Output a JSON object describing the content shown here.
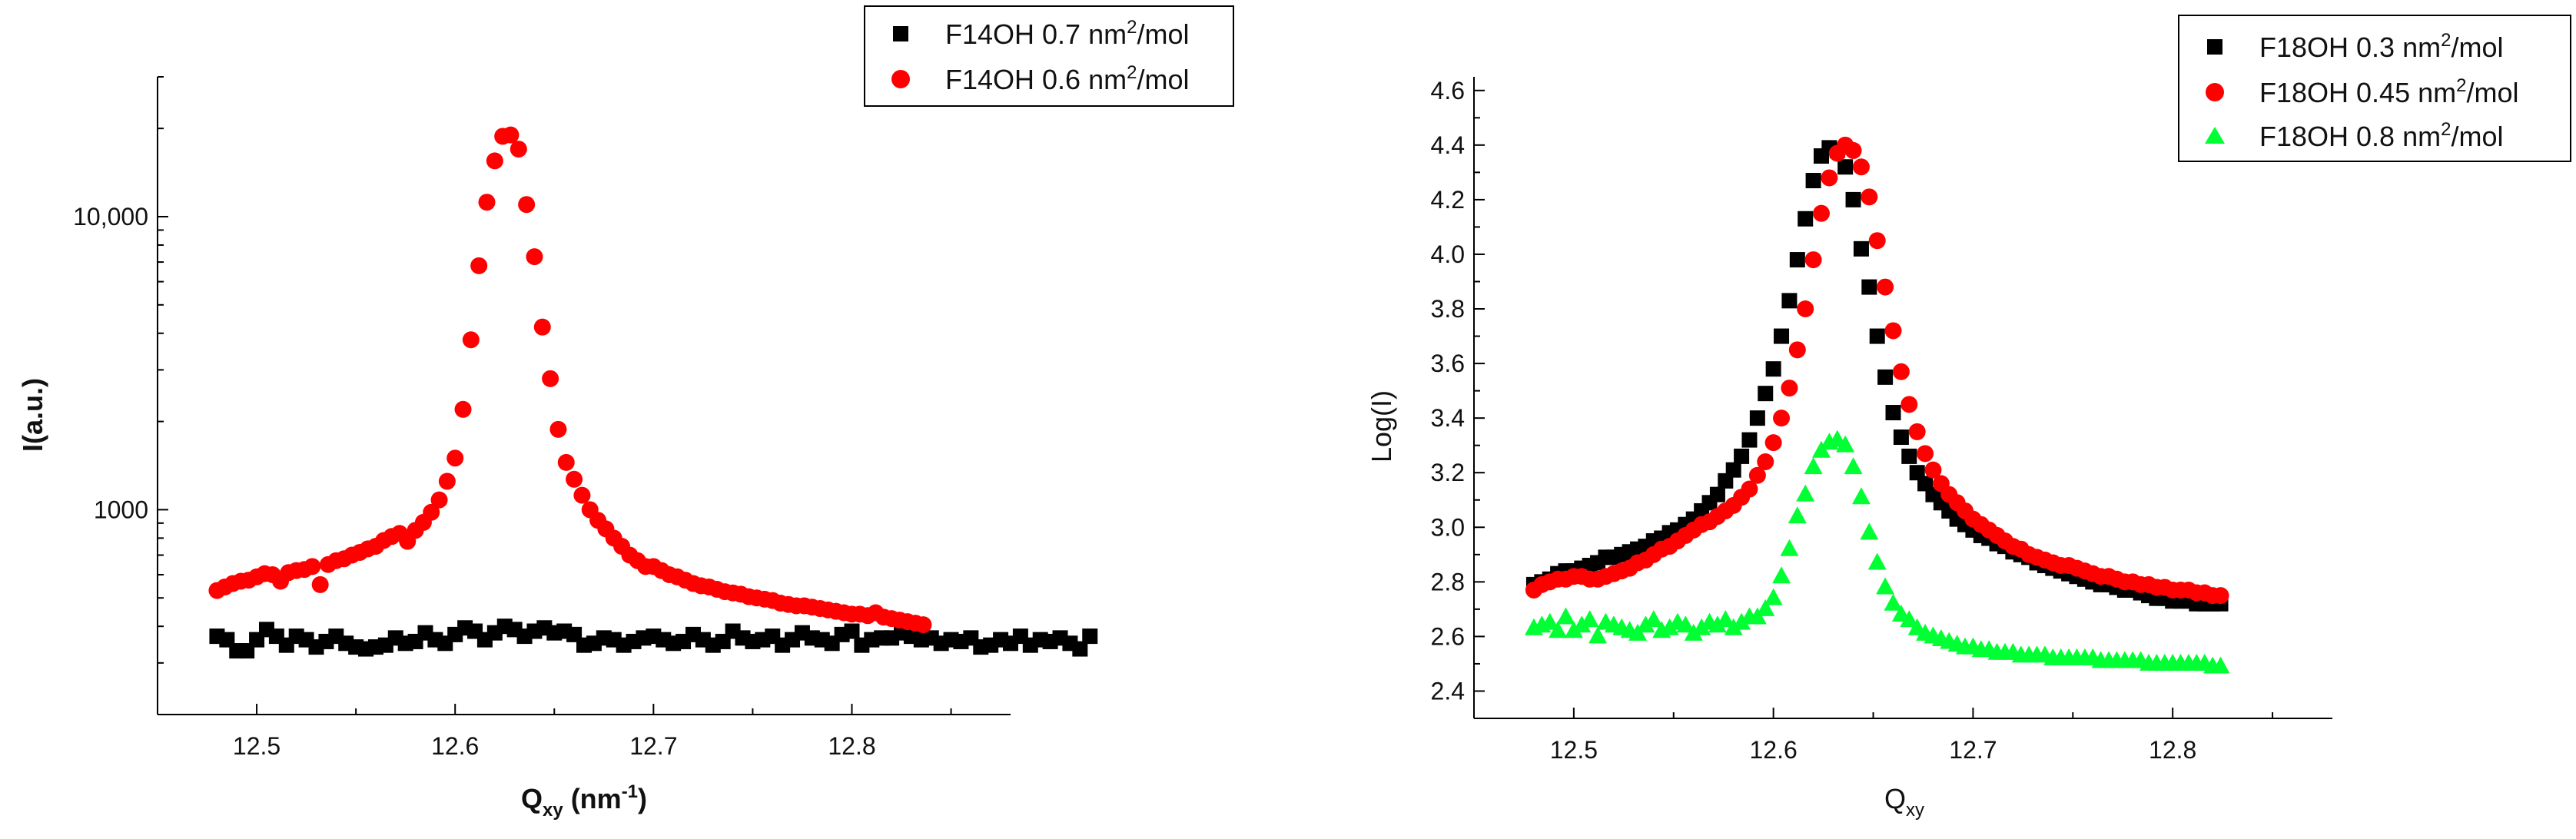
{
  "chart_data": [
    {
      "id": "left",
      "type": "scatter",
      "yscale": "log",
      "xlabel": {
        "main": "Q",
        "sub": "xy",
        "unit": " (nm",
        "unit_sup": "-1",
        "unit_close": ")"
      },
      "ylabel": "I(a.u.)",
      "xlim": [
        12.45,
        12.88
      ],
      "ylim": [
        200,
        30000
      ],
      "xticks": [
        12.5,
        12.6,
        12.7,
        12.8
      ],
      "xtick_labels": [
        "12.5",
        "12.6",
        "12.7",
        "12.8"
      ],
      "yticks": [
        1000,
        10000
      ],
      "ytick_labels": [
        "1000",
        "10,000"
      ],
      "legend_position": "top-right",
      "series": [
        {
          "name": "F14OH 0.7 nm",
          "name_sup": "2",
          "name_tail": "/mol",
          "color": "#000000",
          "marker": "square",
          "x_start": 12.48,
          "x_step": 0.005,
          "values": [
            370,
            360,
            330,
            330,
            360,
            390,
            370,
            345,
            370,
            360,
            340,
            355,
            370,
            350,
            340,
            335,
            340,
            345,
            365,
            350,
            355,
            380,
            360,
            350,
            375,
            395,
            385,
            360,
            380,
            400,
            390,
            370,
            385,
            395,
            380,
            385,
            375,
            345,
            350,
            365,
            360,
            345,
            355,
            365,
            370,
            360,
            350,
            355,
            375,
            360,
            345,
            355,
            385,
            365,
            355,
            360,
            370,
            345,
            360,
            380,
            365,
            360,
            350,
            375,
            385,
            345,
            360,
            365,
            365,
            380,
            370,
            360,
            365,
            350,
            360,
            355,
            365,
            340,
            345,
            360,
            350,
            370,
            345,
            360,
            355,
            365,
            350,
            335,
            370
          ]
        },
        {
          "name": "F14OH 0.6 nm",
          "name_sup": "2",
          "name_tail": "/mol",
          "color": "#ff0000",
          "marker": "circle",
          "x_start": 12.48,
          "x_step": 0.004,
          "values": [
            530,
            545,
            560,
            570,
            575,
            590,
            605,
            600,
            570,
            610,
            620,
            625,
            640,
            555,
            650,
            670,
            680,
            700,
            715,
            735,
            750,
            785,
            810,
            830,
            780,
            850,
            905,
            980,
            1080,
            1250,
            1500,
            2200,
            3800,
            6800,
            11200,
            15500,
            18800,
            19000,
            17000,
            11000,
            7300,
            4200,
            2800,
            1880,
            1450,
            1270,
            1120,
            1000,
            920,
            860,
            800,
            750,
            700,
            670,
            640,
            640,
            620,
            600,
            590,
            575,
            560,
            550,
            545,
            535,
            525,
            520,
            515,
            505,
            500,
            495,
            490,
            480,
            475,
            470,
            470,
            465,
            460,
            455,
            450,
            445,
            440,
            440,
            435,
            445,
            430,
            425,
            420,
            415,
            410,
            405
          ]
        }
      ]
    },
    {
      "id": "right",
      "type": "scatter",
      "yscale": "linear",
      "xlabel": {
        "main": "Q",
        "sub": "xy",
        "unit": "",
        "unit_sup": "",
        "unit_close": ""
      },
      "ylabel": "Log(I)",
      "xlim": [
        12.45,
        12.88
      ],
      "ylim": [
        2.3,
        4.65
      ],
      "xticks": [
        12.5,
        12.6,
        12.7,
        12.8
      ],
      "xtick_labels": [
        "12.5",
        "12.6",
        "12.7",
        "12.8"
      ],
      "yticks": [
        2.4,
        2.6,
        2.8,
        3.0,
        3.2,
        3.4,
        3.6,
        3.8,
        4.0,
        4.2,
        4.4,
        4.6
      ],
      "ytick_labels": [
        "2.4",
        "2.6",
        "2.8",
        "3.0",
        "3.2",
        "3.4",
        "3.6",
        "3.8",
        "4.0",
        "4.2",
        "4.4",
        "4.6"
      ],
      "legend_position": "top-right",
      "series": [
        {
          "name": "F18OH 0.3 nm",
          "name_sup": "2",
          "name_tail": "/mol",
          "color": "#000000",
          "marker": "square",
          "x_start": 12.48,
          "x_step": 0.004,
          "values": [
            2.79,
            2.8,
            2.81,
            2.83,
            2.84,
            2.84,
            2.85,
            2.86,
            2.87,
            2.89,
            2.89,
            2.9,
            2.91,
            2.92,
            2.93,
            2.95,
            2.96,
            2.98,
            2.99,
            3.01,
            3.03,
            3.06,
            3.09,
            3.12,
            3.17,
            3.21,
            3.26,
            3.32,
            3.4,
            3.49,
            3.58,
            3.7,
            3.83,
            3.98,
            4.13,
            4.27,
            4.36,
            4.39,
            4.38,
            4.32,
            4.2,
            4.02,
            3.88,
            3.7,
            3.55,
            3.42,
            3.33,
            3.26,
            3.2,
            3.16,
            3.12,
            3.09,
            3.06,
            3.03,
            3.01,
            2.99,
            2.97,
            2.96,
            2.94,
            2.93,
            2.91,
            2.9,
            2.89,
            2.87,
            2.86,
            2.85,
            2.84,
            2.83,
            2.82,
            2.81,
            2.8,
            2.79,
            2.79,
            2.78,
            2.77,
            2.77,
            2.76,
            2.75,
            2.74,
            2.74,
            2.73,
            2.73,
            2.73,
            2.72,
            2.72,
            2.72,
            2.72
          ]
        },
        {
          "name": "F18OH 0.45 nm",
          "name_sup": "2",
          "name_tail": "/mol",
          "color": "#ff0000",
          "marker": "circle",
          "x_start": 12.48,
          "x_step": 0.004,
          "values": [
            2.77,
            2.79,
            2.8,
            2.81,
            2.81,
            2.82,
            2.82,
            2.81,
            2.81,
            2.82,
            2.83,
            2.84,
            2.85,
            2.87,
            2.88,
            2.9,
            2.92,
            2.93,
            2.95,
            2.97,
            2.99,
            3.01,
            3.02,
            3.04,
            3.06,
            3.08,
            3.11,
            3.14,
            3.19,
            3.24,
            3.31,
            3.4,
            3.51,
            3.65,
            3.8,
            3.98,
            4.15,
            4.28,
            4.37,
            4.4,
            4.38,
            4.32,
            4.21,
            4.05,
            3.88,
            3.72,
            3.57,
            3.45,
            3.35,
            3.27,
            3.21,
            3.16,
            3.12,
            3.09,
            3.06,
            3.03,
            3.01,
            2.99,
            2.97,
            2.95,
            2.93,
            2.92,
            2.9,
            2.89,
            2.88,
            2.87,
            2.86,
            2.86,
            2.85,
            2.84,
            2.83,
            2.82,
            2.82,
            2.81,
            2.8,
            2.8,
            2.79,
            2.79,
            2.78,
            2.78,
            2.77,
            2.77,
            2.77,
            2.76,
            2.76,
            2.75,
            2.75
          ]
        },
        {
          "name": "F18OH 0.8 nm",
          "name_sup": "2",
          "name_tail": "/mol",
          "color": "#00ff33",
          "marker": "triangle",
          "x_start": 12.48,
          "x_step": 0.004,
          "values": [
            2.63,
            2.64,
            2.65,
            2.62,
            2.67,
            2.62,
            2.64,
            2.66,
            2.6,
            2.65,
            2.64,
            2.63,
            2.62,
            2.61,
            2.64,
            2.66,
            2.62,
            2.63,
            2.65,
            2.64,
            2.61,
            2.63,
            2.65,
            2.64,
            2.66,
            2.63,
            2.65,
            2.67,
            2.67,
            2.7,
            2.74,
            2.82,
            2.92,
            3.04,
            3.12,
            3.22,
            3.28,
            3.31,
            3.32,
            3.3,
            3.22,
            3.11,
            2.98,
            2.87,
            2.78,
            2.72,
            2.68,
            2.66,
            2.63,
            2.61,
            2.6,
            2.59,
            2.58,
            2.57,
            2.56,
            2.56,
            2.55,
            2.55,
            2.54,
            2.54,
            2.54,
            2.53,
            2.53,
            2.53,
            2.53,
            2.52,
            2.52,
            2.52,
            2.52,
            2.52,
            2.52,
            2.51,
            2.51,
            2.51,
            2.51,
            2.51,
            2.51,
            2.5,
            2.5,
            2.5,
            2.5,
            2.5,
            2.5,
            2.5,
            2.5,
            2.49,
            2.49
          ]
        }
      ]
    }
  ]
}
